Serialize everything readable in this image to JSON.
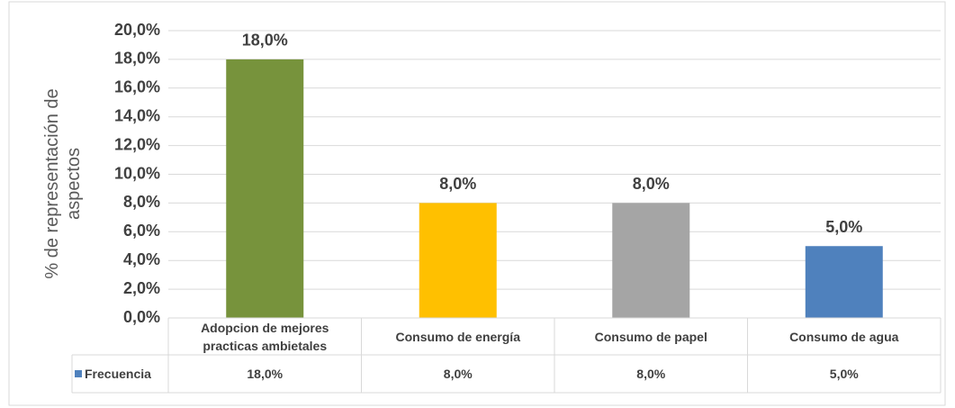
{
  "chart_data": {
    "type": "bar",
    "y_label": "% de representación de aspectos",
    "categories": [
      "Adopcion de mejores practicas ambietales",
      "Consumo de energía",
      "Consumo de papel",
      "Consumo de agua"
    ],
    "series": [
      {
        "name": "Frecuencia",
        "color": "#4f81bd",
        "point_colors": [
          "#77933c",
          "#ffc000",
          "#a5a5a5",
          "#4f81bd"
        ],
        "values": [
          18,
          8,
          8,
          5
        ],
        "value_labels": [
          "18,0%",
          "8,0%",
          "8,0%",
          "5,0%"
        ]
      }
    ],
    "ylim": [
      0,
      20
    ],
    "yticks": [
      {
        "value": 0,
        "label": "0,0%"
      },
      {
        "value": 2,
        "label": "2,0%"
      },
      {
        "value": 4,
        "label": "4,0%"
      },
      {
        "value": 6,
        "label": "6,0%"
      },
      {
        "value": 8,
        "label": "8,0%"
      },
      {
        "value": 10,
        "label": "10,0%"
      },
      {
        "value": 12,
        "label": "12,0%"
      },
      {
        "value": 14,
        "label": "14,0%"
      },
      {
        "value": 16,
        "label": "16,0%"
      },
      {
        "value": 18,
        "label": "18,0%"
      },
      {
        "value": 20,
        "label": "20,0%"
      }
    ],
    "grid": true,
    "data_table": true
  }
}
